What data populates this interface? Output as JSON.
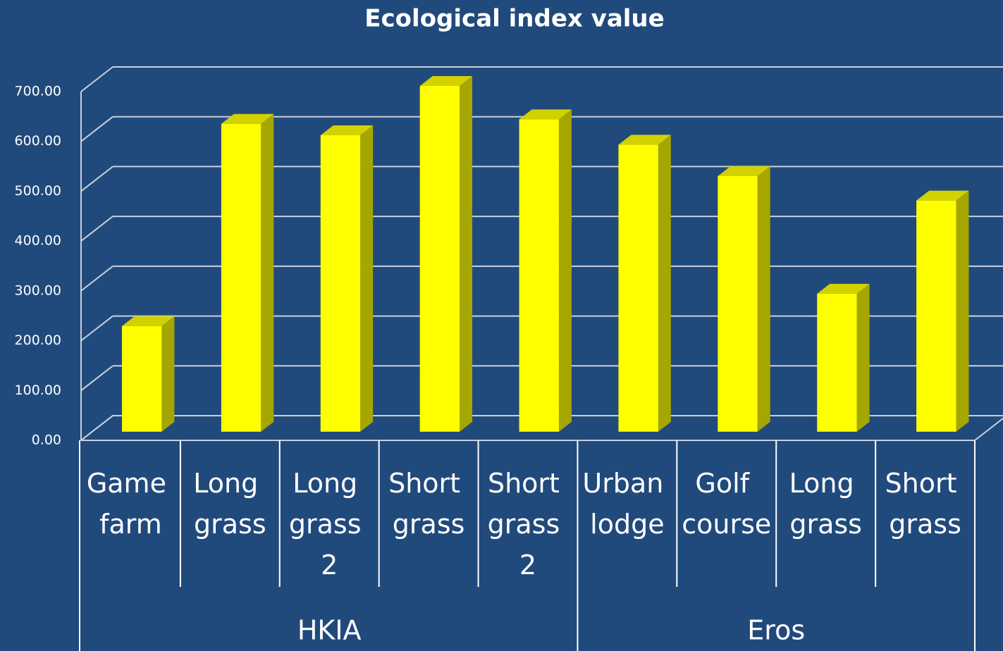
{
  "chart_data": {
    "type": "bar3d",
    "title": "Ecological index value",
    "groups": [
      {
        "name": "HKIA",
        "categories": [
          "Game farm",
          "Long grass",
          "Long grass 2",
          "Short grass",
          "Short grass 2"
        ],
        "values": [
          212,
          618,
          595,
          694,
          627
        ]
      },
      {
        "name": "Eros",
        "categories": [
          "Urban lodge",
          "Golf course",
          "Long grass",
          "Short grass"
        ],
        "values": [
          576,
          513,
          277,
          464
        ]
      }
    ],
    "color": "#ffff00",
    "ylim": [
      0,
      700
    ],
    "yticks": [
      {
        "value": 0,
        "label": "0.00"
      },
      {
        "value": 100,
        "label": "100.00"
      },
      {
        "value": 200,
        "label": "200.00"
      },
      {
        "value": 300,
        "label": "300.00"
      },
      {
        "value": 400,
        "label": "400.00"
      },
      {
        "value": 500,
        "label": "500.00"
      },
      {
        "value": 600,
        "label": "600.00"
      },
      {
        "value": 700,
        "label": "700.00"
      }
    ],
    "grid": true
  }
}
